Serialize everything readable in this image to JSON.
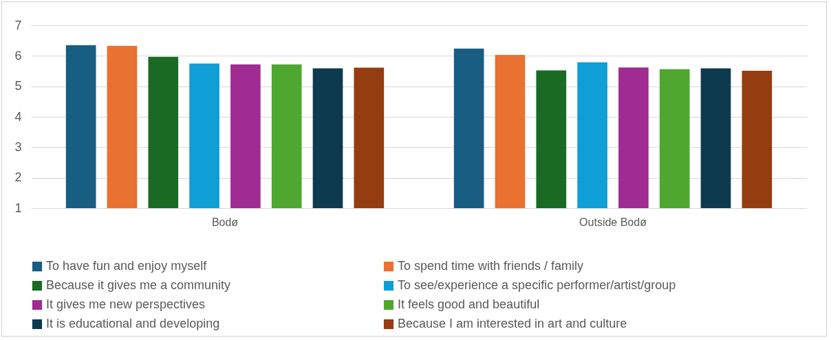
{
  "chart_data": {
    "type": "bar",
    "categories": [
      "Bodø",
      "Outside Bodø"
    ],
    "series": [
      {
        "name": "To have fun and enjoy myself",
        "color": "#175e82",
        "values": [
          6.35,
          6.24
        ]
      },
      {
        "name": "To spend time with friends / family",
        "color": "#e97132",
        "values": [
          6.33,
          6.03
        ]
      },
      {
        "name": "Because it gives me a community",
        "color": "#196b24",
        "values": [
          5.97,
          5.52
        ]
      },
      {
        "name": "To see/experience a specific performer/artist/group",
        "color": "#0f9ed5",
        "values": [
          5.75,
          5.79
        ]
      },
      {
        "name": "It gives me new perspectives",
        "color": "#a02b93",
        "values": [
          5.72,
          5.62
        ]
      },
      {
        "name": "It feels good and beautiful",
        "color": "#4ea72e",
        "values": [
          5.72,
          5.56
        ]
      },
      {
        "name": "It is educational and developing",
        "color": "#0e3a4f",
        "values": [
          5.59,
          5.59
        ]
      },
      {
        "name": "Because I am interested in art and culture",
        "color": "#953c10",
        "values": [
          5.61,
          5.51
        ]
      }
    ],
    "ylim": [
      1,
      7
    ],
    "yticks": [
      1,
      2,
      3,
      4,
      5,
      6,
      7
    ],
    "grid": "y",
    "legend": "bottom"
  }
}
